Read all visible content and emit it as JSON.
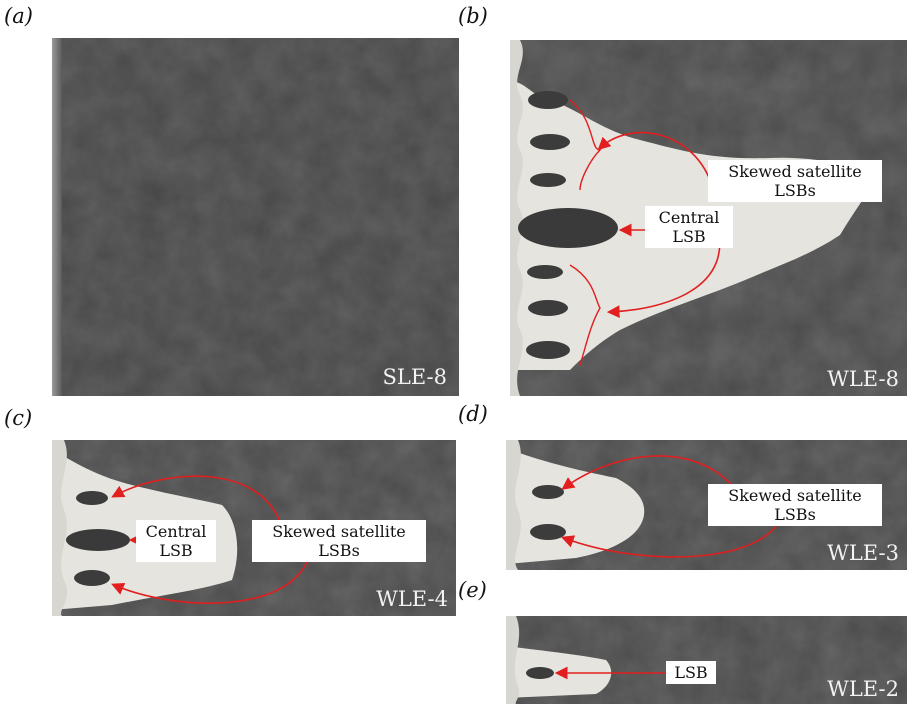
{
  "panels": {
    "a": {
      "label": "(a)",
      "case": "SLE-8"
    },
    "b": {
      "label": "(b)",
      "case": "WLE-8",
      "annotations": {
        "central_line1": "Central",
        "central_line2": "LSB",
        "satellite_line1": "Skewed satellite",
        "satellite_line2": "LSBs"
      }
    },
    "c": {
      "label": "(c)",
      "case": "WLE-4",
      "annotations": {
        "central_line1": "Central",
        "central_line2": "LSB",
        "satellite_line1": "Skewed satellite",
        "satellite_line2": "LSBs"
      }
    },
    "d": {
      "label": "(d)",
      "case": "WLE-3",
      "annotations": {
        "satellite_line1": "Skewed satellite",
        "satellite_line2": "LSBs"
      }
    },
    "e": {
      "label": "(e)",
      "case": "WLE-2",
      "annotations": {
        "lsb": "LSB"
      }
    }
  },
  "colors": {
    "surface": "#4a4a4a",
    "bubble": "#e6e4df",
    "arrow": "#e21e1e",
    "lsb_blob": "#3c3c3c"
  }
}
